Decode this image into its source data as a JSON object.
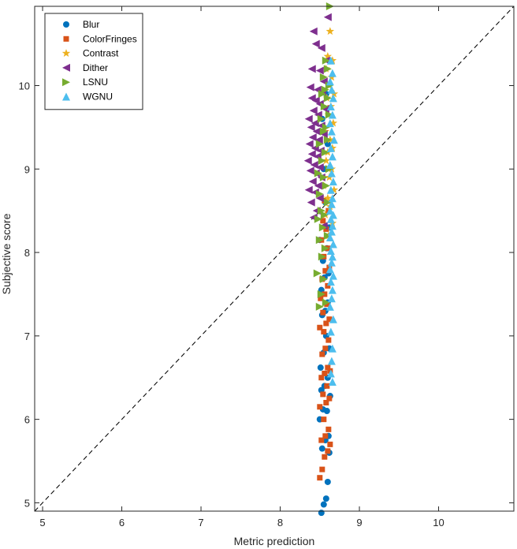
{
  "chart_data": {
    "type": "scatter",
    "title": "",
    "xlabel": "Metric prediction",
    "ylabel": "Subjective score",
    "xlim": [
      4.9,
      10.95
    ],
    "ylim": [
      4.9,
      10.95
    ],
    "xticks": [
      "5",
      "6",
      "7",
      "8",
      "9",
      "10"
    ],
    "yticks": [
      "5",
      "6",
      "7",
      "8",
      "9",
      "10"
    ],
    "grid": false,
    "legend_position": "top-left",
    "reference_line": "y = x (dashed)",
    "series": [
      {
        "name": "Blur",
        "marker": "circle",
        "color": "#0072BD",
        "x": [
          8.52,
          8.55,
          8.58,
          8.6,
          8.62,
          8.53,
          8.57,
          8.61,
          8.5,
          8.54,
          8.59,
          8.63,
          8.52,
          8.56,
          8.6,
          8.51,
          8.55,
          8.62,
          8.58,
          8.53,
          8.57,
          8.6,
          8.52,
          8.56,
          8.61,
          8.54,
          8.59,
          8.5,
          8.62,
          8.57,
          8.55,
          8.6,
          8.53,
          8.58
        ],
        "y": [
          4.88,
          4.98,
          5.05,
          5.25,
          5.6,
          5.65,
          5.75,
          5.8,
          6.0,
          6.12,
          6.1,
          6.28,
          6.35,
          6.4,
          6.5,
          6.62,
          6.8,
          6.85,
          7.0,
          7.25,
          7.3,
          7.4,
          7.55,
          7.7,
          7.75,
          7.9,
          8.05,
          8.15,
          8.3,
          8.6,
          9.0,
          9.3,
          9.6,
          9.9
        ]
      },
      {
        "name": "ColorFringes",
        "marker": "square",
        "color": "#D95319",
        "x": [
          8.5,
          8.53,
          8.56,
          8.6,
          8.63,
          8.52,
          8.57,
          8.61,
          8.55,
          8.5,
          8.58,
          8.62,
          8.54,
          8.59,
          8.52,
          8.56,
          8.63,
          8.6,
          8.53,
          8.57,
          8.61,
          8.55,
          8.5,
          8.58,
          8.62,
          8.54,
          8.59,
          8.51,
          8.56,
          8.6,
          8.53,
          8.57,
          8.62,
          8.55,
          8.6,
          8.52,
          8.58,
          8.54,
          8.61,
          8.56
        ],
        "y": [
          5.3,
          5.4,
          5.55,
          5.62,
          5.7,
          5.75,
          5.8,
          5.88,
          6.0,
          6.15,
          6.2,
          6.25,
          6.3,
          6.4,
          6.5,
          6.55,
          6.58,
          6.62,
          6.78,
          6.85,
          6.95,
          7.05,
          7.1,
          7.15,
          7.2,
          7.28,
          7.38,
          7.45,
          7.5,
          7.6,
          7.68,
          7.78,
          7.82,
          7.95,
          8.05,
          8.15,
          8.28,
          8.38,
          8.5,
          8.62
        ]
      },
      {
        "name": "Contrast",
        "marker": "star",
        "color": "#EDB120",
        "x": [
          8.63,
          8.6,
          8.66,
          8.58,
          8.65,
          8.62,
          8.68,
          8.59,
          8.64,
          8.61,
          8.67,
          8.57,
          8.63,
          8.66,
          8.6,
          8.58,
          8.65,
          8.62,
          8.55,
          8.68,
          8.6,
          8.63,
          8.57,
          8.66,
          8.61
        ],
        "y": [
          10.65,
          10.35,
          10.3,
          10.2,
          10.1,
          10.0,
          9.9,
          9.85,
          9.75,
          9.65,
          9.55,
          9.45,
          9.35,
          9.25,
          9.2,
          9.1,
          9.0,
          8.9,
          8.8,
          8.75,
          8.65,
          8.55,
          8.45,
          8.35,
          8.2
        ]
      },
      {
        "name": "Dither",
        "marker": "triangle-left",
        "color": "#7E2F8E",
        "x": [
          8.6,
          8.42,
          8.45,
          8.52,
          8.58,
          8.4,
          8.5,
          8.55,
          8.38,
          8.47,
          8.53,
          8.4,
          8.45,
          8.5,
          8.57,
          8.42,
          8.48,
          8.36,
          8.44,
          8.52,
          8.39,
          8.46,
          8.55,
          8.41,
          8.49,
          8.37,
          8.44,
          8.51,
          8.4,
          8.47,
          8.35,
          8.43,
          8.5,
          8.38,
          8.45,
          8.52,
          8.41,
          8.48,
          8.36,
          8.44,
          8.5,
          8.39,
          8.46,
          8.42,
          8.55
        ],
        "y": [
          10.82,
          10.65,
          10.5,
          10.45,
          10.3,
          10.2,
          10.18,
          10.05,
          9.98,
          9.95,
          9.92,
          9.85,
          9.82,
          9.78,
          9.72,
          9.7,
          9.65,
          9.6,
          9.55,
          9.52,
          9.5,
          9.45,
          9.42,
          9.38,
          9.35,
          9.3,
          9.25,
          9.22,
          9.18,
          9.15,
          9.1,
          9.05,
          9.02,
          8.98,
          8.95,
          8.9,
          8.85,
          8.8,
          8.75,
          8.72,
          8.65,
          8.6,
          8.5,
          8.42,
          8.32
        ]
      },
      {
        "name": "LSNU",
        "marker": "triangle-right",
        "color": "#77AC30",
        "x": [
          8.63,
          8.58,
          8.6,
          8.55,
          8.62,
          8.57,
          8.53,
          8.6,
          8.56,
          8.62,
          8.52,
          8.58,
          8.55,
          8.6,
          8.5,
          8.57,
          8.53,
          8.62,
          8.48,
          8.55,
          8.58,
          8.5,
          8.6,
          8.52,
          8.56,
          8.48,
          8.54,
          8.6,
          8.5,
          8.57,
          8.53,
          8.47,
          8.55,
          8.52,
          8.58,
          8.5
        ],
        "y": [
          10.95,
          10.3,
          10.2,
          10.1,
          10.0,
          9.95,
          9.9,
          9.85,
          9.75,
          9.65,
          9.6,
          9.5,
          9.45,
          9.35,
          9.3,
          9.2,
          9.1,
          9.0,
          8.95,
          8.9,
          8.8,
          8.7,
          8.6,
          8.5,
          8.45,
          8.4,
          8.3,
          8.2,
          8.15,
          8.05,
          7.95,
          7.75,
          7.68,
          7.5,
          7.4,
          7.35
        ]
      },
      {
        "name": "WGNU",
        "marker": "triangle-up",
        "color": "#4DBEEE",
        "x": [
          8.64,
          8.66,
          8.63,
          8.65,
          8.67,
          8.64,
          8.66,
          8.63,
          8.65,
          8.68,
          8.64,
          8.66,
          8.63,
          8.65,
          8.67,
          8.64,
          8.66,
          8.65,
          8.63,
          8.67,
          8.64,
          8.66,
          8.65,
          8.63,
          8.67,
          8.64,
          8.66,
          8.65,
          8.63,
          8.67,
          8.64,
          8.66,
          8.65,
          8.63,
          8.67,
          8.64,
          8.66,
          8.65,
          8.64,
          8.66
        ],
        "y": [
          10.3,
          10.15,
          10.05,
          9.95,
          9.85,
          9.75,
          9.65,
          9.55,
          9.45,
          9.35,
          9.25,
          9.15,
          9.05,
          8.95,
          8.85,
          8.75,
          8.65,
          8.58,
          8.5,
          8.45,
          8.4,
          8.32,
          8.25,
          8.18,
          8.1,
          8.02,
          7.95,
          7.88,
          7.8,
          7.72,
          7.65,
          7.55,
          7.45,
          7.35,
          7.2,
          7.05,
          6.85,
          6.7,
          6.55,
          6.45
        ]
      }
    ]
  }
}
